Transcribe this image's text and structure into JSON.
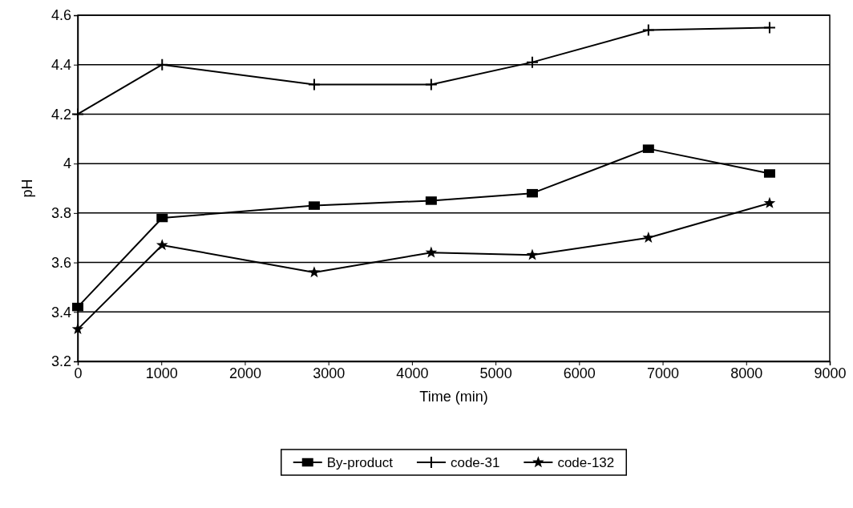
{
  "chart_data": {
    "type": "line",
    "xlabel": "Time (min)",
    "ylabel": "pH",
    "x": [
      0,
      1010,
      2830,
      4230,
      5440,
      6830,
      8280
    ],
    "series": [
      {
        "name": "By-product",
        "color": "#000000",
        "marker": "square",
        "values": [
          3.42,
          3.78,
          3.83,
          3.85,
          3.88,
          4.06,
          3.96
        ]
      },
      {
        "name": "code-31",
        "color": "#000000",
        "marker": "cross",
        "values": [
          4.2,
          4.4,
          4.32,
          4.32,
          4.41,
          4.54,
          4.55
        ]
      },
      {
        "name": "code-132",
        "color": "#000000",
        "marker": "star",
        "values": [
          3.33,
          3.67,
          3.56,
          3.64,
          3.63,
          3.7,
          3.84
        ]
      }
    ],
    "xlim": [
      0,
      9000
    ],
    "xticks": [
      0,
      1000,
      2000,
      3000,
      4000,
      5000,
      6000,
      7000,
      8000,
      9000
    ],
    "ylim": [
      3.2,
      4.6
    ],
    "yticks": [
      3.2,
      {
        "value": 3.4,
        "label": "3.4"
      },
      {
        "value": 3.6,
        "label": "3.6"
      },
      {
        "value": 3.8,
        "label": "3.8"
      },
      4,
      {
        "value": 4.2,
        "label": "4.2"
      },
      {
        "value": 4.4,
        "label": "4.4"
      },
      {
        "value": 4.6,
        "label": "4.6"
      }
    ],
    "grid": "y",
    "legend": "bottom",
    "line_style": "solid"
  }
}
